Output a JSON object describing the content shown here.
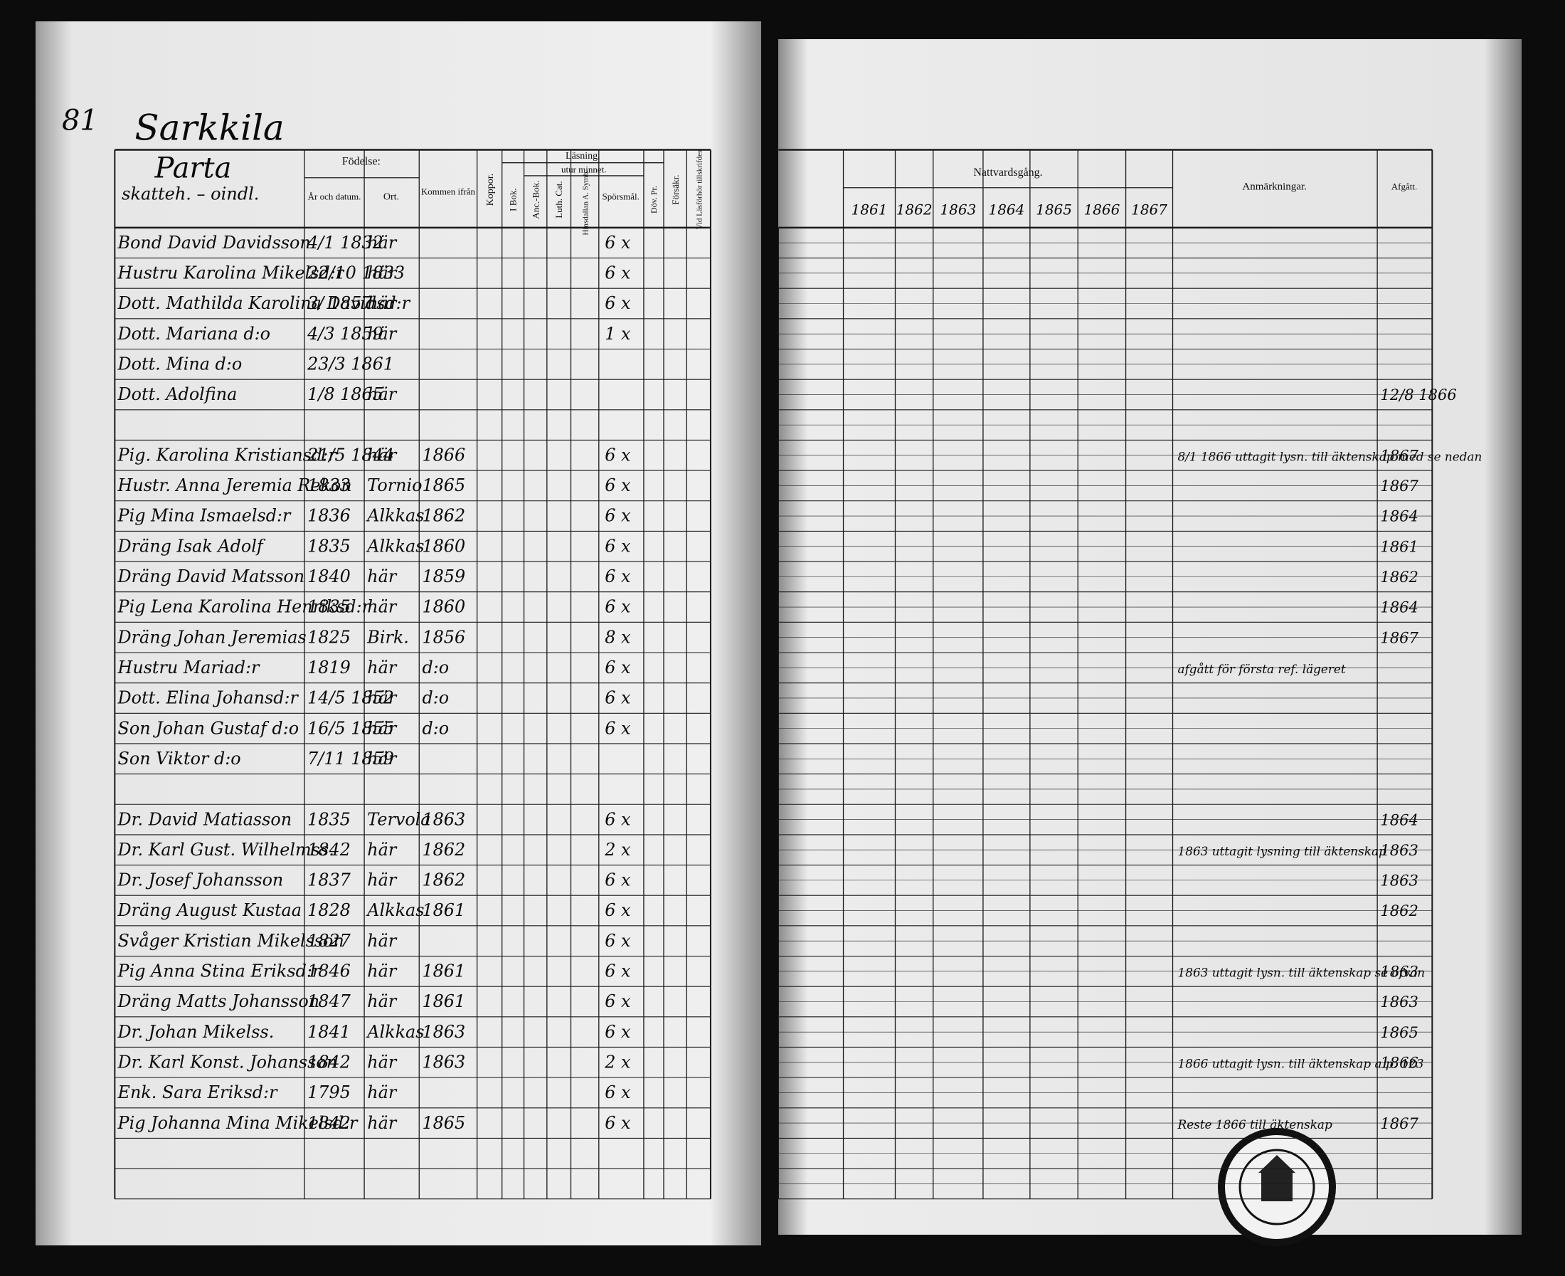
{
  "header": {
    "page_number": "81",
    "parish": "Sarkkila",
    "farm": "Parta",
    "farm_type": "skatteh. – oindl."
  },
  "left_columns": {
    "birth": "Födelse:",
    "birth_date": "År och datum.",
    "birth_place": "Ort.",
    "from": "Kommen ifrån",
    "smallpox": "Koppor.",
    "reading": "Läsning.",
    "by_heart": "utur minnet.",
    "book": "I Bok.",
    "anc_book": "Anc.-Bok.",
    "luth_cat": "Luth. Cat.",
    "symb": "Hinsdallan A. Symb.",
    "questions": "Spörsmål.",
    "deaf": "Döv. Pr.",
    "insurance": "Försäkr.",
    "exam": "Vid Läsförhör tillskrifdes"
  },
  "right_columns": {
    "communion": "Nattvardsgång.",
    "years": [
      "1861",
      "1862",
      "1863",
      "1864",
      "1865",
      "1866",
      "1867"
    ],
    "remarks": "Anmärkningar.",
    "departed": "Afgått."
  },
  "households": [
    {
      "members": [
        {
          "name": "Bond David Davidsson",
          "born": "4/1 1832",
          "place": "här",
          "sporsmal": "6 x"
        },
        {
          "name": "Hustru Karolina Mikelsd:r",
          "born": "22/10 1833",
          "place": "här",
          "sporsmal": "6 x"
        },
        {
          "name": "Dott. Mathilda Karolina Davidsd:r",
          "born": "3/ 1857",
          "place": "här",
          "sporsmal": "6 x"
        },
        {
          "name": "Dott. Mariana d:o",
          "born": "4/3 1859",
          "place": "här",
          "sporsmal": "1 x"
        },
        {
          "name": "Dott. Mina d:o",
          "born": "23/3 1861"
        },
        {
          "name": "Dott. Adolfina",
          "born": "1/8 1865",
          "place": "här",
          "departed": "12/8 1866"
        }
      ]
    },
    {
      "members": [
        {
          "name": "Pig. Karolina Kristiansd:r",
          "born": "21/5 1844",
          "place": "här",
          "from": "1866",
          "sporsmal": "6 x",
          "remark": "8/1 1866 uttagit lysn. till äktenskap med se nedan",
          "departed": "1867"
        },
        {
          "name": "Hustr. Anna Jeremia Rekon",
          "born": "1833",
          "place": "Tornio",
          "from": "1865",
          "sporsmal": "6 x",
          "departed": "1867"
        },
        {
          "name": "Pig Mina Ismaelsd:r",
          "born": "1836",
          "place": "Alkkas",
          "from": "1862",
          "sporsmal": "6 x",
          "departed": "1864"
        },
        {
          "name": "Dräng Isak Adolf",
          "born": "1835",
          "place": "Alkkas",
          "from": "1860",
          "sporsmal": "6 x",
          "departed": "1861"
        },
        {
          "name": "Dräng David Matsson",
          "born": "1840",
          "place": "här",
          "from": "1859",
          "sporsmal": "6 x",
          "departed": "1862"
        },
        {
          "name": "Pig Lena Karolina Henriksd:r",
          "born": "1835",
          "place": "här",
          "from": "1860",
          "sporsmal": "6 x",
          "departed": "1864"
        },
        {
          "name": "Dräng Johan Jeremias",
          "born": "1825",
          "place": "Birk.",
          "from": "1856",
          "sporsmal": "8 x",
          "departed": "1867"
        },
        {
          "name": "Hustru Mariad:r",
          "born": "1819",
          "place": "här",
          "from": "d:o",
          "sporsmal": "6 x",
          "remark": "afgått för första ref. lägeret"
        },
        {
          "name": "Dott. Elina Johansd:r",
          "born": "14/5 1852",
          "place": "här",
          "from": "d:o",
          "sporsmal": "6 x"
        },
        {
          "name": "Son Johan Gustaf d:o",
          "born": "16/5 1855",
          "place": "här",
          "from": "d:o",
          "sporsmal": "6 x"
        },
        {
          "name": "Son Viktor d:o",
          "born": "7/11 1859",
          "place": "här"
        }
      ]
    },
    {
      "members": [
        {
          "name": "Dr. David Matiasson",
          "born": "1835",
          "place": "Tervola",
          "from": "1863",
          "sporsmal": "6 x",
          "departed": "1864"
        },
        {
          "name": "Dr. Karl Gust. Wilhelmss.",
          "born": "1842",
          "place": "här",
          "from": "1862",
          "sporsmal": "2 x",
          "remark": "1863 uttagit lysning till äktenskap",
          "departed": "1863"
        },
        {
          "name": "Dr. Josef Johansson",
          "born": "1837",
          "place": "här",
          "from": "1862",
          "sporsmal": "6 x",
          "departed": "1863"
        },
        {
          "name": "Dräng August Kustaa",
          "born": "1828",
          "place": "Alkkas",
          "from": "1861",
          "sporsmal": "6 x",
          "departed": "1862"
        },
        {
          "name": "Svåger Kristian Mikelsson",
          "born": "1827",
          "place": "här",
          "sporsmal": "6 x"
        },
        {
          "name": "Pig Anna Stina Eriksd:r",
          "born": "1846",
          "place": "här",
          "from": "1861",
          "sporsmal": "6 x",
          "remark": "1863 uttagit lysn. till äktenskap se ofvan",
          "departed": "1863"
        },
        {
          "name": "Dräng Matts Johansson",
          "born": "1847",
          "place": "här",
          "from": "1861",
          "sporsmal": "6 x",
          "departed": "1863"
        },
        {
          "name": "Dr. Johan Mikelss.",
          "born": "1841",
          "place": "Alkkas",
          "from": "1863",
          "sporsmal": "6 x",
          "departed": "1865"
        },
        {
          "name": "Dr. Karl Konst. Johansson",
          "born": "1842",
          "place": "här",
          "from": "1863",
          "sporsmal": "2 x",
          "remark": "1866 uttagit lysn. till äktenskap a.p. 123",
          "departed": "1866"
        },
        {
          "name": "Enk. Sara Eriksd:r",
          "born": "1795",
          "place": "här",
          "sporsmal": "6 x"
        },
        {
          "name": "Pig Johanna Mina Mikelsd:r",
          "born": "1842",
          "place": "här",
          "from": "1865",
          "sporsmal": "6 x",
          "remark": "Reste 1866 till äktenskap",
          "departed": "1867"
        }
      ]
    }
  ]
}
